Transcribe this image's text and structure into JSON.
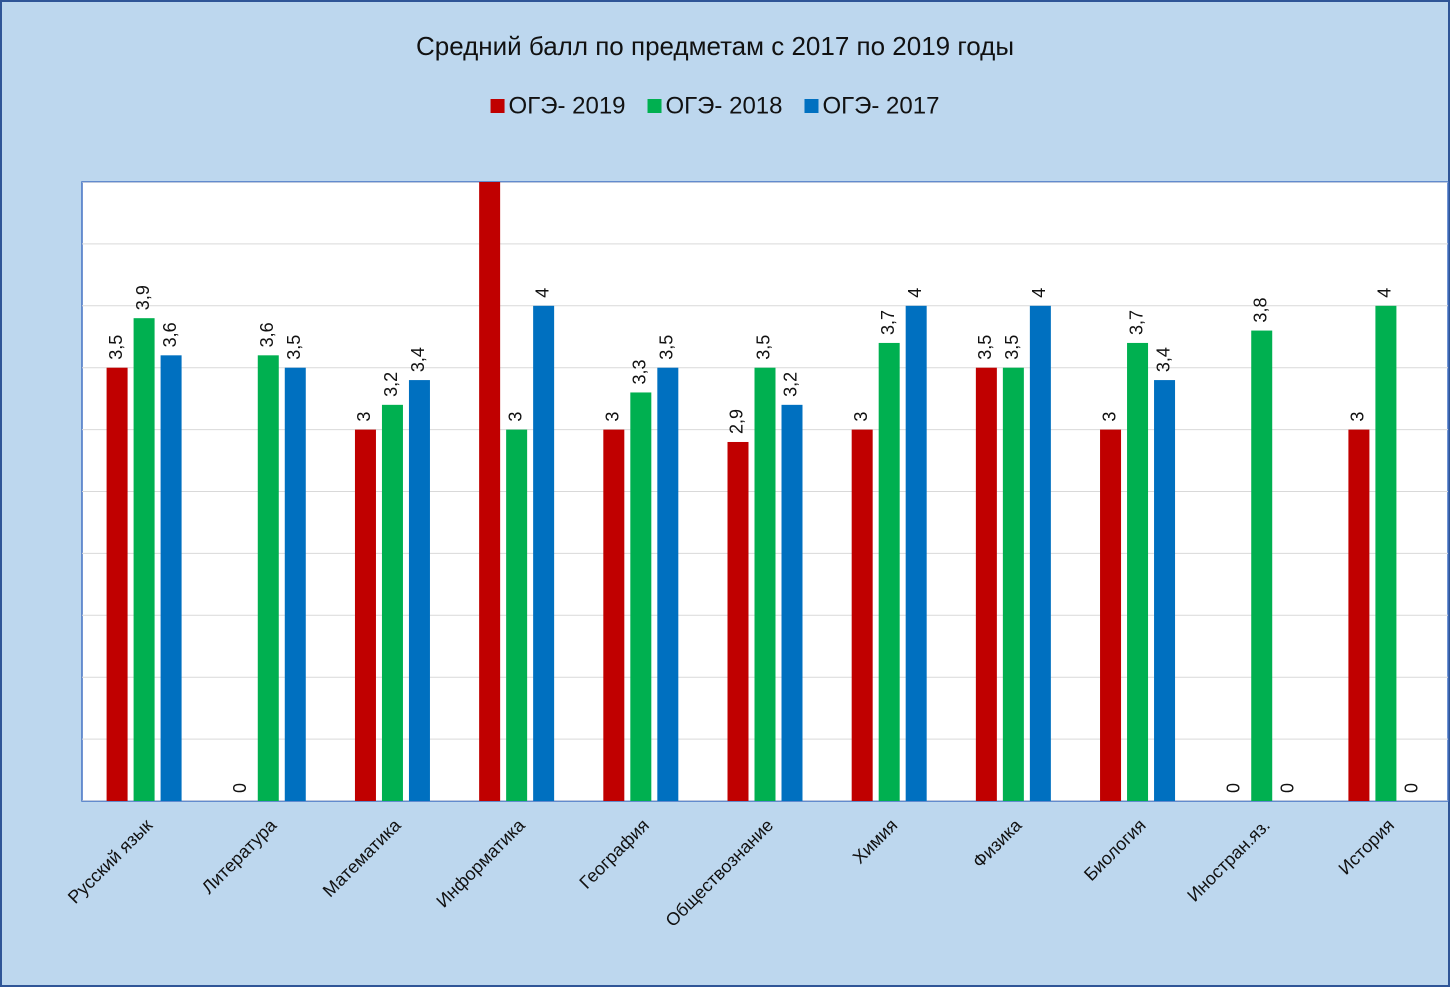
{
  "chart_data": {
    "type": "bar",
    "title": "Средний балл по предметам с 2017 по 2019 годы",
    "categories": [
      "Русский язык",
      "Литература",
      "Математика",
      "Информатика",
      "География",
      "Обществознание",
      "Химия",
      "Физика",
      "Биология",
      "Иностран.яз.",
      "История"
    ],
    "series": [
      {
        "name": "ОГЭ- 2019",
        "color": "#c00000",
        "values": [
          3.5,
          0,
          3,
          5,
          3,
          2.9,
          3,
          3.5,
          3,
          0,
          3
        ],
        "value_labels": [
          "3,5",
          "0",
          "3",
          null,
          "3",
          "2,9",
          "3",
          "3,5",
          "3",
          "0",
          "3"
        ]
      },
      {
        "name": "ОГЭ- 2018",
        "color": "#00b050",
        "values": [
          3.9,
          3.6,
          3.2,
          3,
          3.3,
          3.5,
          3.7,
          3.5,
          3.7,
          3.8,
          4
        ],
        "value_labels": [
          "3,9",
          "3,6",
          "3,2",
          "3",
          "3,3",
          "3,5",
          "3,7",
          "3,5",
          "3,7",
          "3,8",
          "4"
        ]
      },
      {
        "name": "ОГЭ- 2017",
        "color": "#0070c0",
        "values": [
          3.6,
          3.5,
          3.4,
          4,
          3.5,
          3.2,
          4,
          4,
          3.4,
          0,
          0
        ],
        "value_labels": [
          "3,6",
          "3,5",
          "3,4",
          "4",
          "3,5",
          "3,2",
          "4",
          "4",
          "3,4",
          "0",
          "0"
        ]
      }
    ],
    "ylim": [
      0,
      5
    ],
    "yticks": [
      0,
      0.5,
      1,
      1.5,
      2,
      2.5,
      3,
      3.5,
      4,
      4.5,
      5
    ],
    "grid": true,
    "legend": "top"
  }
}
